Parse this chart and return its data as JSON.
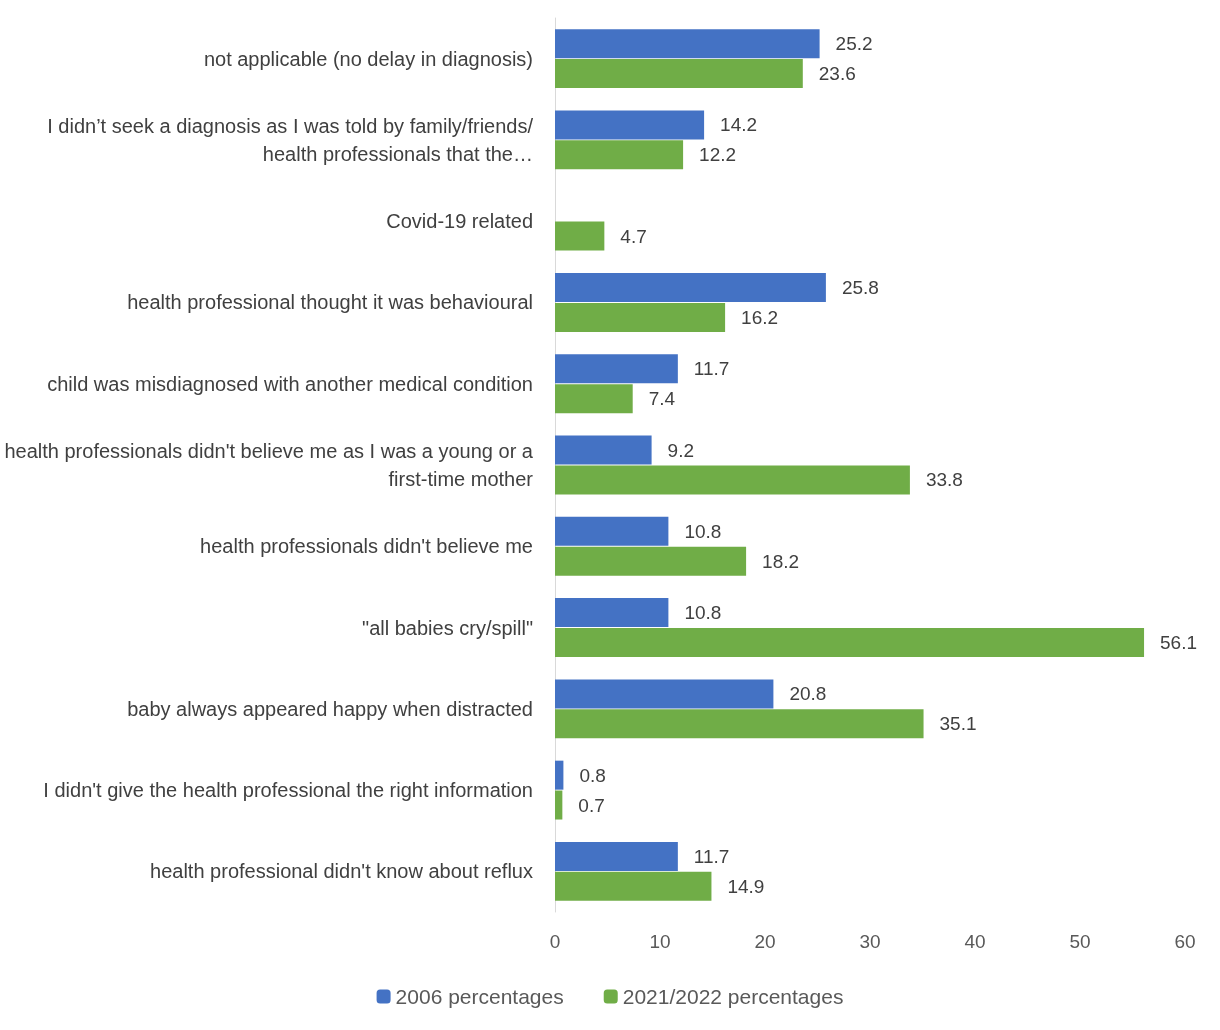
{
  "chart_data": {
    "type": "bar",
    "orientation": "horizontal",
    "categories": [
      "not applicable (no delay in diagnosis)",
      "I didn’t seek a diagnosis as I was told by family/friends/health professionals that the…",
      "Covid-19 related",
      "health professional thought it was behavioural",
      "child was misdiagnosed with another medical condition",
      "health professionals didn't believe me as I was a young or a first-time mother",
      "health professionals didn't believe me",
      "\"all babies cry/spill\"",
      "baby always appeared happy when distracted",
      "I didn't give the health professional the right information",
      "health professional didn't know about reflux"
    ],
    "series": [
      {
        "name": "2006 percentages",
        "color": "#4472c4",
        "values": [
          25.2,
          14.2,
          null,
          25.8,
          11.7,
          9.2,
          10.8,
          10.8,
          20.8,
          0.8,
          11.7
        ]
      },
      {
        "name": "2021/2022 percentages",
        "color": "#70ad47",
        "values": [
          23.6,
          12.2,
          4.7,
          16.2,
          7.4,
          33.8,
          18.2,
          56.1,
          35.1,
          0.7,
          14.9
        ]
      }
    ],
    "xlim": [
      0,
      60
    ],
    "xticks": [
      0,
      10,
      20,
      30,
      40,
      50,
      60
    ],
    "grid": false,
    "legend": "bottom",
    "data_labels": true
  }
}
